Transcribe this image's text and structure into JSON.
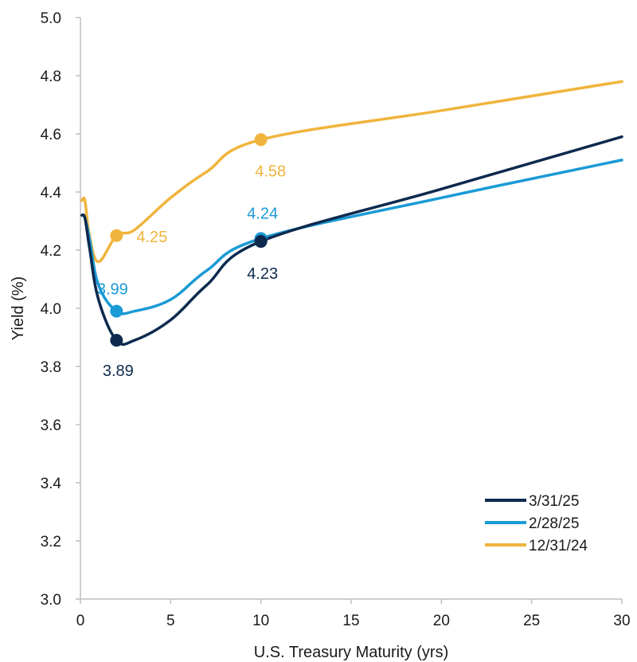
{
  "chart_data": {
    "type": "line",
    "xlabel": "U.S. Treasury Maturity (yrs)",
    "ylabel": "Yield (%)",
    "xlim": [
      0,
      30
    ],
    "ylim": [
      3.0,
      5.0
    ],
    "x_ticks": [
      "0",
      "5",
      "10",
      "15",
      "20",
      "25",
      "30"
    ],
    "y_ticks": [
      "3.0",
      "3.2",
      "3.4",
      "3.6",
      "3.8",
      "4.0",
      "4.2",
      "4.4",
      "4.6",
      "4.8",
      "5.0"
    ],
    "grid": false,
    "legend_position": "bottom-right",
    "series": [
      {
        "name": "3/31/25",
        "color": "#0d2a4e",
        "x": [
          0.08,
          0.25,
          0.5,
          1,
          2,
          3,
          5,
          7,
          10,
          20,
          30
        ],
        "y": [
          4.32,
          4.31,
          4.21,
          4.03,
          3.89,
          3.89,
          3.96,
          4.08,
          4.23,
          4.41,
          4.59
        ],
        "markers": [
          {
            "x": 2,
            "y": 3.89,
            "label": "3.89"
          },
          {
            "x": 10,
            "y": 4.23,
            "label": "4.23"
          }
        ]
      },
      {
        "name": "2/28/25",
        "color": "#1a9ad6",
        "x": [
          0.08,
          0.25,
          0.5,
          1,
          2,
          3,
          5,
          7,
          10,
          20,
          30
        ],
        "y": [
          4.32,
          4.31,
          4.24,
          4.08,
          3.99,
          3.99,
          4.03,
          4.13,
          4.24,
          4.38,
          4.51
        ],
        "markers": [
          {
            "x": 2,
            "y": 3.99,
            "label": "3.99"
          },
          {
            "x": 10,
            "y": 4.24,
            "label": "4.24"
          }
        ]
      },
      {
        "name": "12/31/24",
        "color": "#f0b43c",
        "x": [
          0.08,
          0.25,
          0.5,
          1,
          2,
          3,
          5,
          7,
          10,
          20,
          30
        ],
        "y": [
          4.37,
          4.37,
          4.25,
          4.16,
          4.25,
          4.27,
          4.38,
          4.47,
          4.58,
          4.68,
          4.78
        ],
        "markers": [
          {
            "x": 2,
            "y": 4.25,
            "label": "4.25"
          },
          {
            "x": 10,
            "y": 4.58,
            "label": "4.58"
          }
        ]
      }
    ]
  }
}
